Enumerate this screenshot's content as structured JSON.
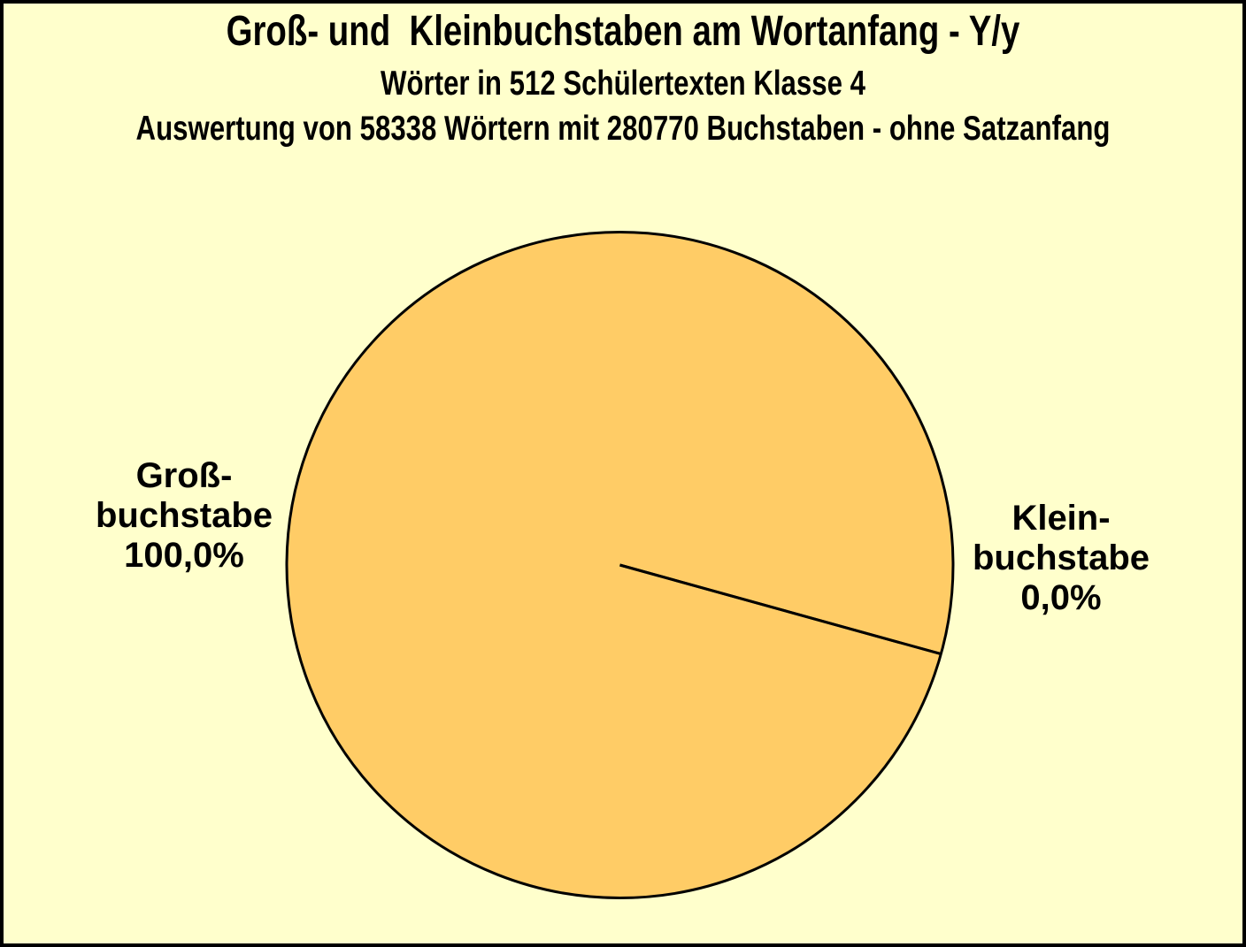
{
  "header": {
    "title": "Groß- und  Kleinbuchstaben am Wortanfang - Y/y",
    "subtitle1": "Wörter in 512 Schülertexten Klasse 4",
    "subtitle2": "Auswertung von 58338 Wörtern mit 280770 Buchstaben - ohne Satzanfang"
  },
  "pie_labels": {
    "left": {
      "lines": [
        "Groß-",
        "buchstabe",
        "100,0%"
      ]
    },
    "right": {
      "lines": [
        "Klein-",
        "buchstabe",
        "0,0%"
      ]
    }
  },
  "chart_data": {
    "type": "pie",
    "title": "Groß- und  Kleinbuchstaben am Wortanfang - Y/y",
    "subtitles": [
      "Wörter in 512 Schülertexten Klasse 4",
      "Auswertung von 58338 Wörtern mit 280770 Buchstaben - ohne Satzanfang"
    ],
    "slices": [
      {
        "label": "Großbuchstabe",
        "value": 100.0,
        "display_percent": "100,0%"
      },
      {
        "label": "Kleinbuchstabe",
        "value": 0.0,
        "display_percent": "0,0%"
      }
    ],
    "start_angle_deg": 15.5,
    "legend": "none",
    "label_position": "outside",
    "colors": {
      "slice_fill": "#FFCC66",
      "outline": "#000000",
      "background": "#FFFFCC"
    }
  }
}
